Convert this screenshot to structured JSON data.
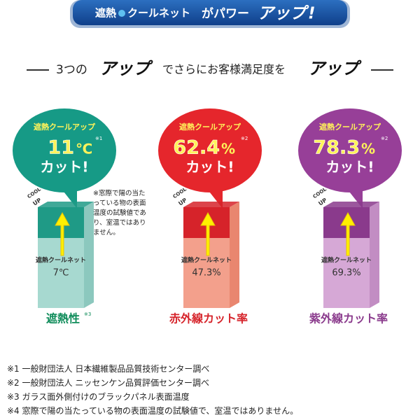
{
  "banner": {
    "brand": "遮熱",
    "brand2": "クールネット",
    "text": "がパワー",
    "up": "アップ",
    "excl": "!"
  },
  "headline": {
    "lead": "3つの",
    "up1": "アップ",
    "middle": "でさらにお客様満足度を",
    "up2": "アップ"
  },
  "side_note": "※窓際で陽の当たっている物の表面温度の試験値であり、室温ではありません。",
  "panels": [
    {
      "bubble_label": "遮熱クールアップ",
      "value": 11,
      "unit": "℃",
      "note": "※1",
      "cut": "カット!",
      "cool": "COOL",
      "up": "UP",
      "box_label": "遮熱クールネット",
      "base": "7℃",
      "category": "遮熱性",
      "category_note": "※3"
    },
    {
      "bubble_label": "遮熱クールアップ",
      "value": 62.4,
      "unit": "%",
      "note": "※2",
      "cut": "カット!",
      "cool": "COOL",
      "up": "UP",
      "box_label": "遮熱クールネット",
      "base": "47.3%",
      "category": "赤外線カット率"
    },
    {
      "bubble_label": "遮熱クールアップ",
      "value": 78.3,
      "unit": "%",
      "note": "※2",
      "cut": "カット!",
      "cool": "COOL",
      "up": "UP",
      "box_label": "遮熱クールネット",
      "base": "69.3%",
      "category": "紫外線カット率"
    }
  ],
  "footnotes": [
    "※1 一般財団法人 日本繊維製品品質技術センター調べ",
    "※2 一般財団法人 ニッセンケン品質評価センター調べ",
    "※3 ガラス面外側付けのブラックパネル表面温度",
    "※4 窓際で陽の当たっている物の表面温度の試験値で、室温ではありません。"
  ]
}
